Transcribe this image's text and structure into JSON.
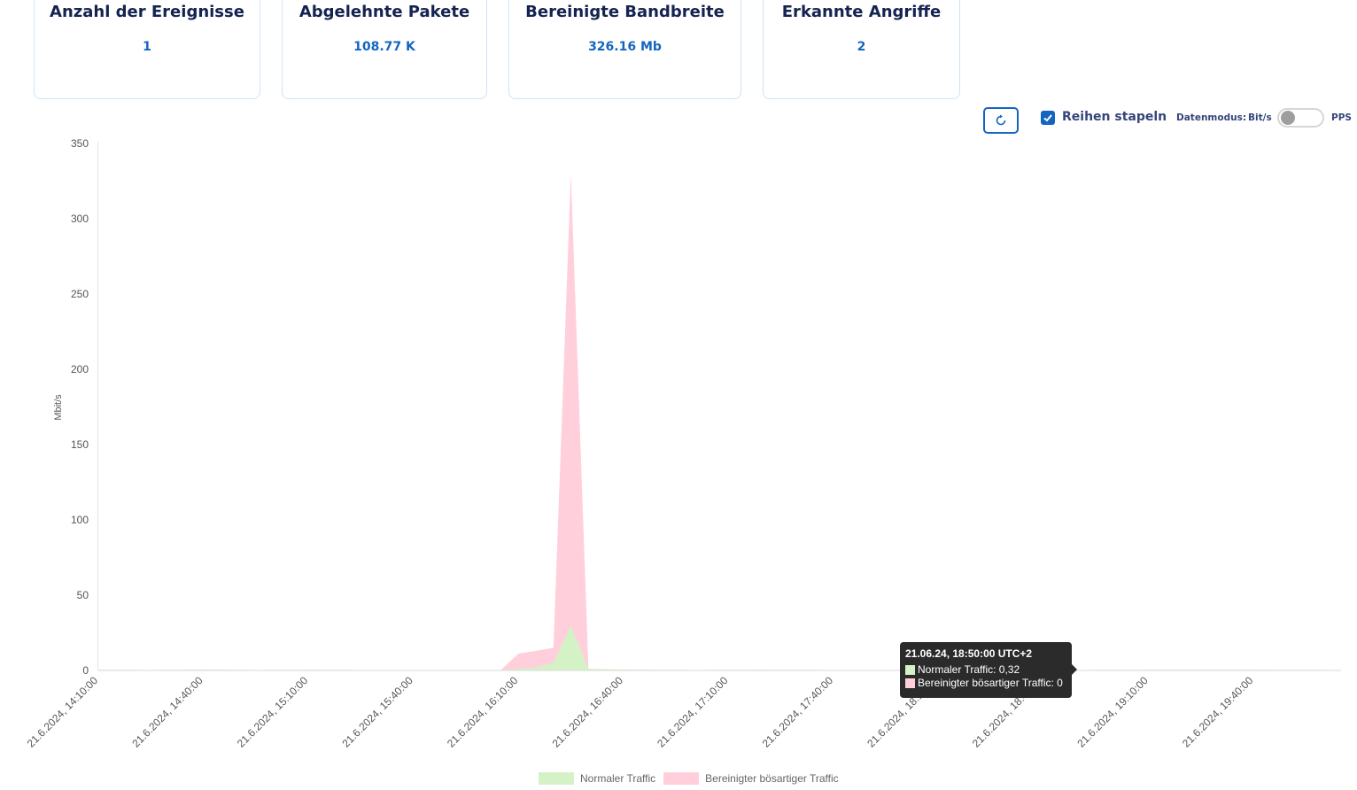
{
  "stats": [
    {
      "title": "Anzahl der Ereignisse",
      "value": "1"
    },
    {
      "title": "Abgelehnte Pakete",
      "value": "108.77 K"
    },
    {
      "title": "Bereinigte Bandbreite",
      "value": "326.16 Mb"
    },
    {
      "title": "Erkannte Angriffe",
      "value": "2"
    }
  ],
  "controls": {
    "refresh_icon": "refresh-icon",
    "stack_series_checked": true,
    "stack_series_label": "Reihen stapeln",
    "data_mode_label": "Datenmodus:",
    "data_mode_bits": "Bit/s",
    "data_mode_pps": "PPS",
    "data_mode_pps_enabled": false
  },
  "tooltip": {
    "title": "21.06.24, 18:50:00 UTC+2",
    "rows": [
      {
        "label": "Normaler Traffic: 0,32",
        "color": "#d4f2c6"
      },
      {
        "label": "Bereinigter bösartiger Traffic: 0",
        "color": "#ffcfdc"
      }
    ]
  },
  "chart_data": {
    "type": "area",
    "stacked": true,
    "ylabel": "Mbit/s",
    "ylim": [
      0,
      350
    ],
    "yticks": [
      0,
      50,
      100,
      150,
      200,
      250,
      300,
      350
    ],
    "xlim": [
      "21.6.2024, 14:10:00",
      "21.6.2024, 20:05:00"
    ],
    "xticks": [
      "21.6.2024, 14:10:00",
      "21.6.2024, 14:40:00",
      "21.6.2024, 15:10:00",
      "21.6.2024, 15:40:00",
      "21.6.2024, 16:10:00",
      "21.6.2024, 16:40:00",
      "21.6.2024, 17:10:00",
      "21.6.2024, 17:40:00",
      "21.6.2024, 18:10:00",
      "21.6.2024, 18:40:00",
      "21.6.2024, 19:10:00",
      "21.6.2024, 19:40:00"
    ],
    "grid": false,
    "legend_position": "bottom",
    "series": [
      {
        "name": "Normaler Traffic",
        "color": "#d4f2c6",
        "points": [
          [
            "21.6.2024, 14:10:00",
            0.4
          ],
          [
            "21.6.2024, 14:25:00",
            0.3
          ],
          [
            "21.6.2024, 14:40:00",
            0.5
          ],
          [
            "21.6.2024, 14:55:00",
            0.3
          ],
          [
            "21.6.2024, 15:10:00",
            0.4
          ],
          [
            "21.6.2024, 15:25:00",
            0.3
          ],
          [
            "21.6.2024, 15:40:00",
            0.3
          ],
          [
            "21.6.2024, 16:05:00",
            0.3
          ],
          [
            "21.6.2024, 16:15:00",
            2
          ],
          [
            "21.6.2024, 16:20:00",
            5
          ],
          [
            "21.6.2024, 16:25:00",
            30
          ],
          [
            "21.6.2024, 16:30:00",
            1
          ],
          [
            "21.6.2024, 16:40:00",
            0.5
          ],
          [
            "21.6.2024, 17:00:00",
            0.3
          ],
          [
            "21.6.2024, 17:20:00",
            0.4
          ],
          [
            "21.6.2024, 17:40:00",
            0.3
          ],
          [
            "21.6.2024, 18:10:00",
            0.3
          ],
          [
            "21.6.2024, 18:50:00",
            0.32
          ],
          [
            "21.6.2024, 19:10:00",
            0.4
          ],
          [
            "21.6.2024, 19:40:00",
            0.4
          ],
          [
            "21.6.2024, 20:05:00",
            0.3
          ]
        ]
      },
      {
        "name": "Bereinigter bösartiger Traffic",
        "color": "#ffcfdc",
        "points": [
          [
            "21.6.2024, 14:10:00",
            0
          ],
          [
            "21.6.2024, 16:05:00",
            0
          ],
          [
            "21.6.2024, 16:10:00",
            10
          ],
          [
            "21.6.2024, 16:15:00",
            11
          ],
          [
            "21.6.2024, 16:20:00",
            10
          ],
          [
            "21.6.2024, 16:25:00",
            300
          ],
          [
            "21.6.2024, 16:30:00",
            0
          ],
          [
            "21.6.2024, 18:50:00",
            0
          ],
          [
            "21.6.2024, 20:05:00",
            0
          ]
        ]
      }
    ]
  }
}
